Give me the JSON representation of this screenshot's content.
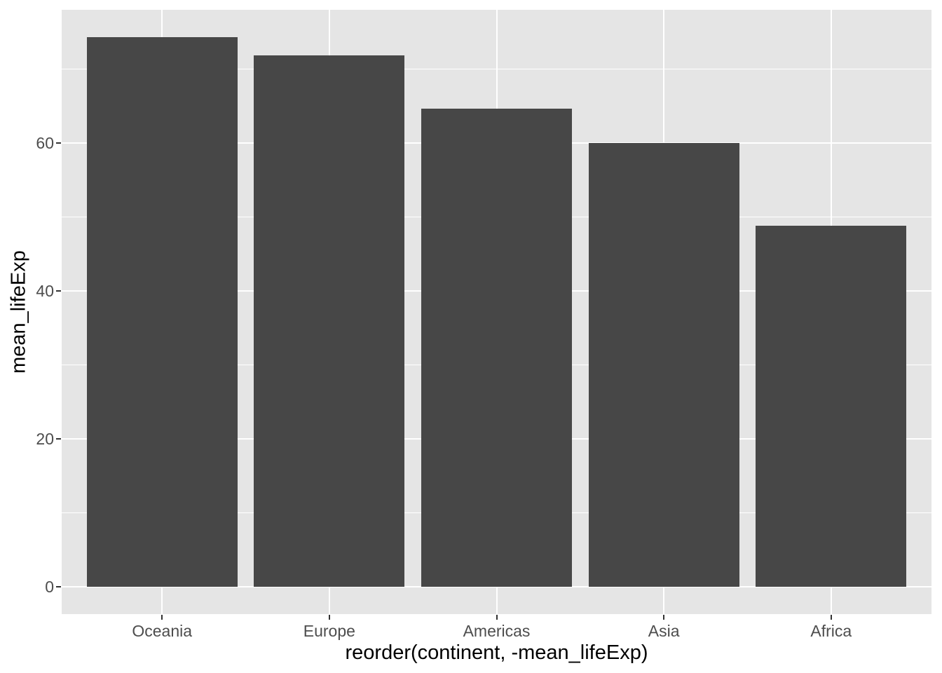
{
  "chart_data": {
    "type": "bar",
    "title": "",
    "xlabel": "reorder(continent, -mean_lifeExp)",
    "ylabel": "mean_lifeExp",
    "categories": [
      "Oceania",
      "Europe",
      "Americas",
      "Asia",
      "Africa"
    ],
    "values": [
      74.33,
      71.9,
      64.66,
      60.06,
      48.87
    ],
    "y_ticks": [
      0,
      20,
      40,
      60
    ],
    "y_minor_gridlines": [
      10,
      30,
      50,
      70
    ],
    "ylim": [
      0,
      74.33
    ],
    "y_expansion": 0.05,
    "grid": "white major and minor horizontal gridlines; white major vertical gridlines at category centers; drawn behind bars",
    "legend": "none",
    "theme": "ggplot2 theme_grey",
    "colors": {
      "figure_background": "#FFFFFF",
      "panel_background": "#E5E5E5",
      "gridline": "#FFFFFF",
      "bar_fill": "#474747",
      "tick_label": "#4D4D4D",
      "axis_title": "#000000",
      "tick_mark": "#333333"
    }
  }
}
